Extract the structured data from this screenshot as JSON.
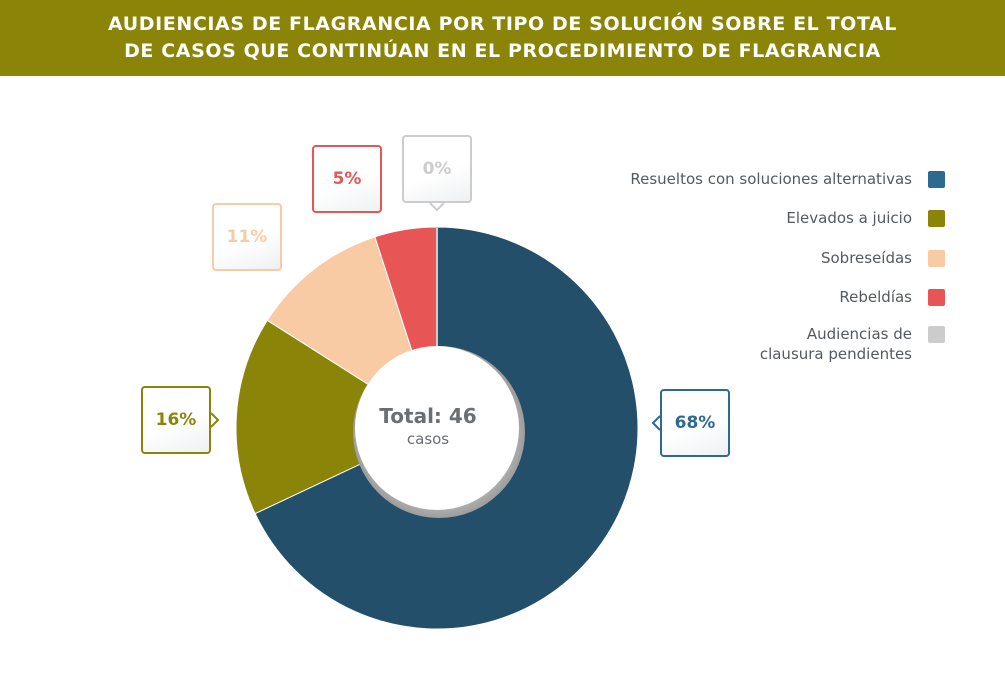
{
  "header": {
    "title_line1": "AUDIENCIAS DE FLAGRANCIA POR TIPO DE SOLUCIÓN SOBRE EL TOTAL",
    "title_line2": "DE CASOS QUE CONTINÚAN EN EL PROCEDIMIENTO DE FLAGRANCIA"
  },
  "center": {
    "total_label": "Total: 46",
    "unit_label": "casos"
  },
  "chart_data": {
    "type": "pie",
    "title": "AUDIENCIAS DE FLAGRANCIA POR TIPO DE SOLUCIÓN SOBRE EL TOTAL DE CASOS QUE CONTINÚAN EN EL PROCEDIMIENTO DE FLAGRANCIA",
    "total": 46,
    "legend_position": "right",
    "slices": [
      {
        "label": "Resueltos con soluciones alternativas",
        "value": 68,
        "display": "68%",
        "color": "#234f6a",
        "legend_color": "#2c6a90",
        "callout_color": "#2c6a90"
      },
      {
        "label": "Elevados a juicio",
        "value": 16,
        "display": "16%",
        "color": "#8a8409",
        "legend_color": "#8a8409",
        "callout_color": "#8a8409"
      },
      {
        "label": "Sobreseídas",
        "value": 11,
        "display": "11%",
        "color": "#f9cba4",
        "legend_color": "#f9cba4",
        "callout_color": "#f9cba4"
      },
      {
        "label": "Rebeldías",
        "value": 5,
        "display": "5%",
        "color": "#e85555",
        "legend_color": "#e85555",
        "callout_color": "#e85555"
      },
      {
        "label": "Audiencias de\nclausura pendientes",
        "value": 0,
        "display": "0%",
        "color": "#cccccc",
        "legend_color": "#cccccc",
        "callout_color": "#cccccc"
      }
    ]
  }
}
